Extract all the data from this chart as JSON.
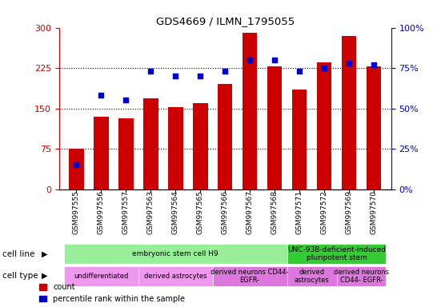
{
  "title": "GDS4669 / ILMN_1795055",
  "samples": [
    "GSM997555",
    "GSM997556",
    "GSM997557",
    "GSM997563",
    "GSM997564",
    "GSM997565",
    "GSM997566",
    "GSM997567",
    "GSM997568",
    "GSM997571",
    "GSM997572",
    "GSM997569",
    "GSM997570"
  ],
  "counts": [
    75,
    135,
    132,
    168,
    152,
    160,
    195,
    290,
    228,
    185,
    235,
    285,
    228
  ],
  "percentiles": [
    15,
    58,
    55,
    73,
    70,
    70,
    73,
    80,
    80,
    73,
    75,
    78,
    77
  ],
  "ylim_left": [
    0,
    300
  ],
  "ylim_right": [
    0,
    100
  ],
  "yticks_left": [
    0,
    75,
    150,
    225,
    300
  ],
  "yticks_right": [
    0,
    25,
    50,
    75,
    100
  ],
  "bar_color": "#cc0000",
  "dot_color": "#0000cc",
  "cell_line_groups": [
    {
      "label": "embryonic stem cell H9",
      "start": 0,
      "end": 8,
      "color": "#99ee99"
    },
    {
      "label": "UNC-93B-deficient-induced\npluripotent stem",
      "start": 9,
      "end": 12,
      "color": "#33cc33"
    }
  ],
  "cell_type_groups": [
    {
      "label": "undifferentiated",
      "start": 0,
      "end": 2,
      "color": "#ee99ee"
    },
    {
      "label": "derived astrocytes",
      "start": 3,
      "end": 5,
      "color": "#ee99ee"
    },
    {
      "label": "derived neurons CD44-\nEGFR-",
      "start": 6,
      "end": 8,
      "color": "#dd77dd"
    },
    {
      "label": "derived\nastrocytes",
      "start": 9,
      "end": 10,
      "color": "#dd77dd"
    },
    {
      "label": "derived neurons\nCD44- EGFR-",
      "start": 11,
      "end": 12,
      "color": "#dd77dd"
    }
  ],
  "row_label_cellline": "cell line",
  "row_label_celltype": "cell type",
  "grid_color": "#000000",
  "bg_color": "#ffffff",
  "left_axis_color": "#cc0000",
  "right_axis_color": "#0000cc"
}
